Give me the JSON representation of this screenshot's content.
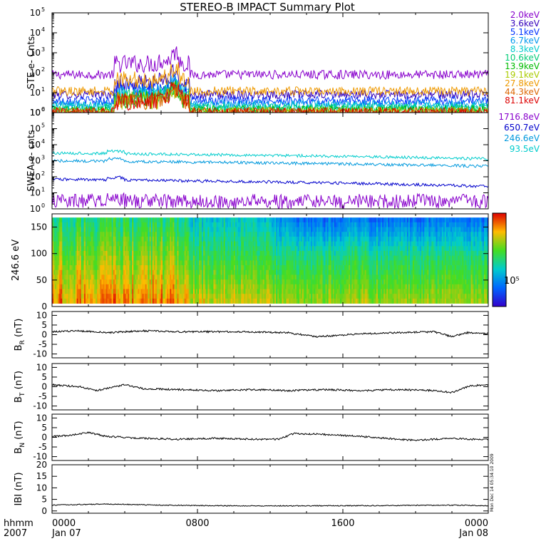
{
  "title": "STEREO-B IMPACT Summary Plot",
  "footer": {
    "xunit_label": "hhmm",
    "year_label": "2007",
    "tick_labels": [
      "0000",
      "0800",
      "1600",
      "0000"
    ],
    "date_start": "Jan 07",
    "date_end": "Jan 08"
  },
  "stamp": "Mon Dec 14 05:34:10 2009",
  "colorbar_tick_label": "10⁵",
  "chart_data": [
    {
      "type": "line",
      "id": "ste",
      "ylabel": "STE e- Cnts",
      "yscale": "log",
      "ylim": [
        1,
        100000
      ],
      "yticks": [
        {
          "t": "10",
          "s": "0"
        },
        {
          "t": "10",
          "s": "1"
        },
        {
          "t": "10",
          "s": "2"
        },
        {
          "t": "10",
          "s": "3"
        },
        {
          "t": "10",
          "s": "4"
        },
        {
          "t": "10",
          "s": "5"
        }
      ],
      "x_hours": [
        0,
        24
      ],
      "series": [
        {
          "name": "2.0keV",
          "color": "#8800cc",
          "level": 80
        },
        {
          "name": "3.6keV",
          "color": "#3300bb",
          "level": 8
        },
        {
          "name": "5.1keV",
          "color": "#0033ff",
          "level": 4
        },
        {
          "name": "6.7keV",
          "color": "#0099ee",
          "level": 2.6
        },
        {
          "name": "8.3keV",
          "color": "#00cccc",
          "level": 2
        },
        {
          "name": "10.6keV",
          "color": "#00cc77",
          "level": 1.6
        },
        {
          "name": "13.9keV",
          "color": "#00bb00",
          "level": 1.3
        },
        {
          "name": "19.1keV",
          "color": "#aacc00",
          "level": 1.15
        },
        {
          "name": "27.8keV",
          "color": "#ee9900",
          "level": 12
        },
        {
          "name": "44.3keV",
          "color": "#dd6600",
          "level": 1.1
        },
        {
          "name": "81.1keV",
          "color": "#dd0000",
          "level": 1.05
        }
      ]
    },
    {
      "type": "line",
      "id": "swea",
      "ylabel": "SWEA e- cnts",
      "yscale": "log",
      "ylim": [
        1,
        1000000
      ],
      "yticks": [
        {
          "t": "10",
          "s": "0"
        },
        {
          "t": "10",
          "s": "1"
        },
        {
          "t": "10",
          "s": "2"
        },
        {
          "t": "10",
          "s": "3"
        },
        {
          "t": "10",
          "s": "4"
        },
        {
          "t": "10",
          "s": "5"
        },
        {
          "t": "10",
          "s": "6"
        }
      ],
      "x_hours": [
        0,
        24
      ],
      "series": [
        {
          "name": "1716.8eV",
          "color": "#8800cc",
          "level_start": 3,
          "level_end": 3
        },
        {
          "name": "650.7eV",
          "color": "#0000cc",
          "level_start": 70,
          "level_end": 25
        },
        {
          "name": "246.6eV",
          "color": "#0099dd",
          "level_start": 1000,
          "level_end": 450
        },
        {
          "name": "93.5eV",
          "color": "#00cccc",
          "level_start": 3000,
          "level_end": 1300
        }
      ]
    },
    {
      "type": "heatmap",
      "id": "pad",
      "ylabel": "246.6 eV",
      "ylim": [
        0,
        175
      ],
      "yticks": [
        0,
        50,
        100,
        150
      ],
      "x_hours": [
        0,
        24
      ],
      "colorbar_ticks": [
        "10⁵"
      ]
    },
    {
      "type": "line",
      "id": "br",
      "ylabel": "B",
      "ylabel_sub": "R",
      "ylabel_unit": "(nT)",
      "ylim": [
        -12,
        12
      ],
      "yticks": [
        -10,
        -5,
        0,
        5,
        10
      ],
      "x_hours": [
        0,
        24
      ],
      "keypoints": [
        [
          0,
          1.5
        ],
        [
          1.5,
          2.0
        ],
        [
          3,
          1.0
        ],
        [
          5,
          2.0
        ],
        [
          7,
          1.5
        ],
        [
          9,
          1.5
        ],
        [
          11,
          1.5
        ],
        [
          13,
          1.0
        ],
        [
          14.5,
          -1.0
        ],
        [
          15.5,
          -0.5
        ],
        [
          17,
          0.5
        ],
        [
          19,
          1.0
        ],
        [
          21,
          1.5
        ],
        [
          22,
          -1.0
        ],
        [
          22.8,
          1.0
        ],
        [
          24,
          0.5
        ]
      ]
    },
    {
      "type": "line",
      "id": "bt",
      "ylabel": "B",
      "ylabel_sub": "T",
      "ylabel_unit": "(nT)",
      "ylim": [
        -12,
        12
      ],
      "yticks": [
        -10,
        -5,
        0,
        5,
        10
      ],
      "x_hours": [
        0,
        24
      ],
      "keypoints": [
        [
          0,
          1.0
        ],
        [
          1.5,
          0.0
        ],
        [
          2.5,
          -2.0
        ],
        [
          4,
          1.0
        ],
        [
          5,
          -1.0
        ],
        [
          7,
          -1.5
        ],
        [
          9,
          -2.0
        ],
        [
          11,
          -1.5
        ],
        [
          13,
          -2.0
        ],
        [
          15,
          -1.5
        ],
        [
          17,
          -2.0
        ],
        [
          19,
          -1.5
        ],
        [
          21,
          -2.0
        ],
        [
          22,
          -3.0
        ],
        [
          23,
          0.5
        ],
        [
          24,
          1.0
        ]
      ]
    },
    {
      "type": "line",
      "id": "bn",
      "ylabel": "B",
      "ylabel_sub": "N",
      "ylabel_unit": "(nT)",
      "ylim": [
        -12,
        12
      ],
      "yticks": [
        -10,
        -5,
        0,
        5,
        10
      ],
      "x_hours": [
        0,
        24
      ],
      "keypoints": [
        [
          0,
          0.5
        ],
        [
          1,
          1.0
        ],
        [
          2,
          2.5
        ],
        [
          3,
          0.5
        ],
        [
          5,
          -0.5
        ],
        [
          7,
          -1.0
        ],
        [
          9,
          -0.5
        ],
        [
          11,
          -1.0
        ],
        [
          12.5,
          -1.0
        ],
        [
          13.3,
          2.0
        ],
        [
          15,
          1.5
        ],
        [
          17,
          0.5
        ],
        [
          19,
          -1.0
        ],
        [
          20,
          -1.5
        ],
        [
          21,
          -1.0
        ],
        [
          22,
          -0.5
        ],
        [
          23,
          -1.0
        ],
        [
          24,
          -1.0
        ]
      ]
    },
    {
      "type": "line",
      "id": "bmag",
      "ylabel": "IBI",
      "ylabel_unit": "(nT)",
      "ylim": [
        -1,
        20
      ],
      "yticks": [
        0,
        5,
        10,
        15,
        20
      ],
      "x_hours": [
        0,
        24
      ],
      "keypoints": [
        [
          0,
          2.5
        ],
        [
          3,
          3.0
        ],
        [
          6,
          2.5
        ],
        [
          10,
          2.2
        ],
        [
          14,
          2.2
        ],
        [
          18,
          2.3
        ],
        [
          22,
          2.5
        ],
        [
          24,
          2.3
        ]
      ]
    }
  ]
}
